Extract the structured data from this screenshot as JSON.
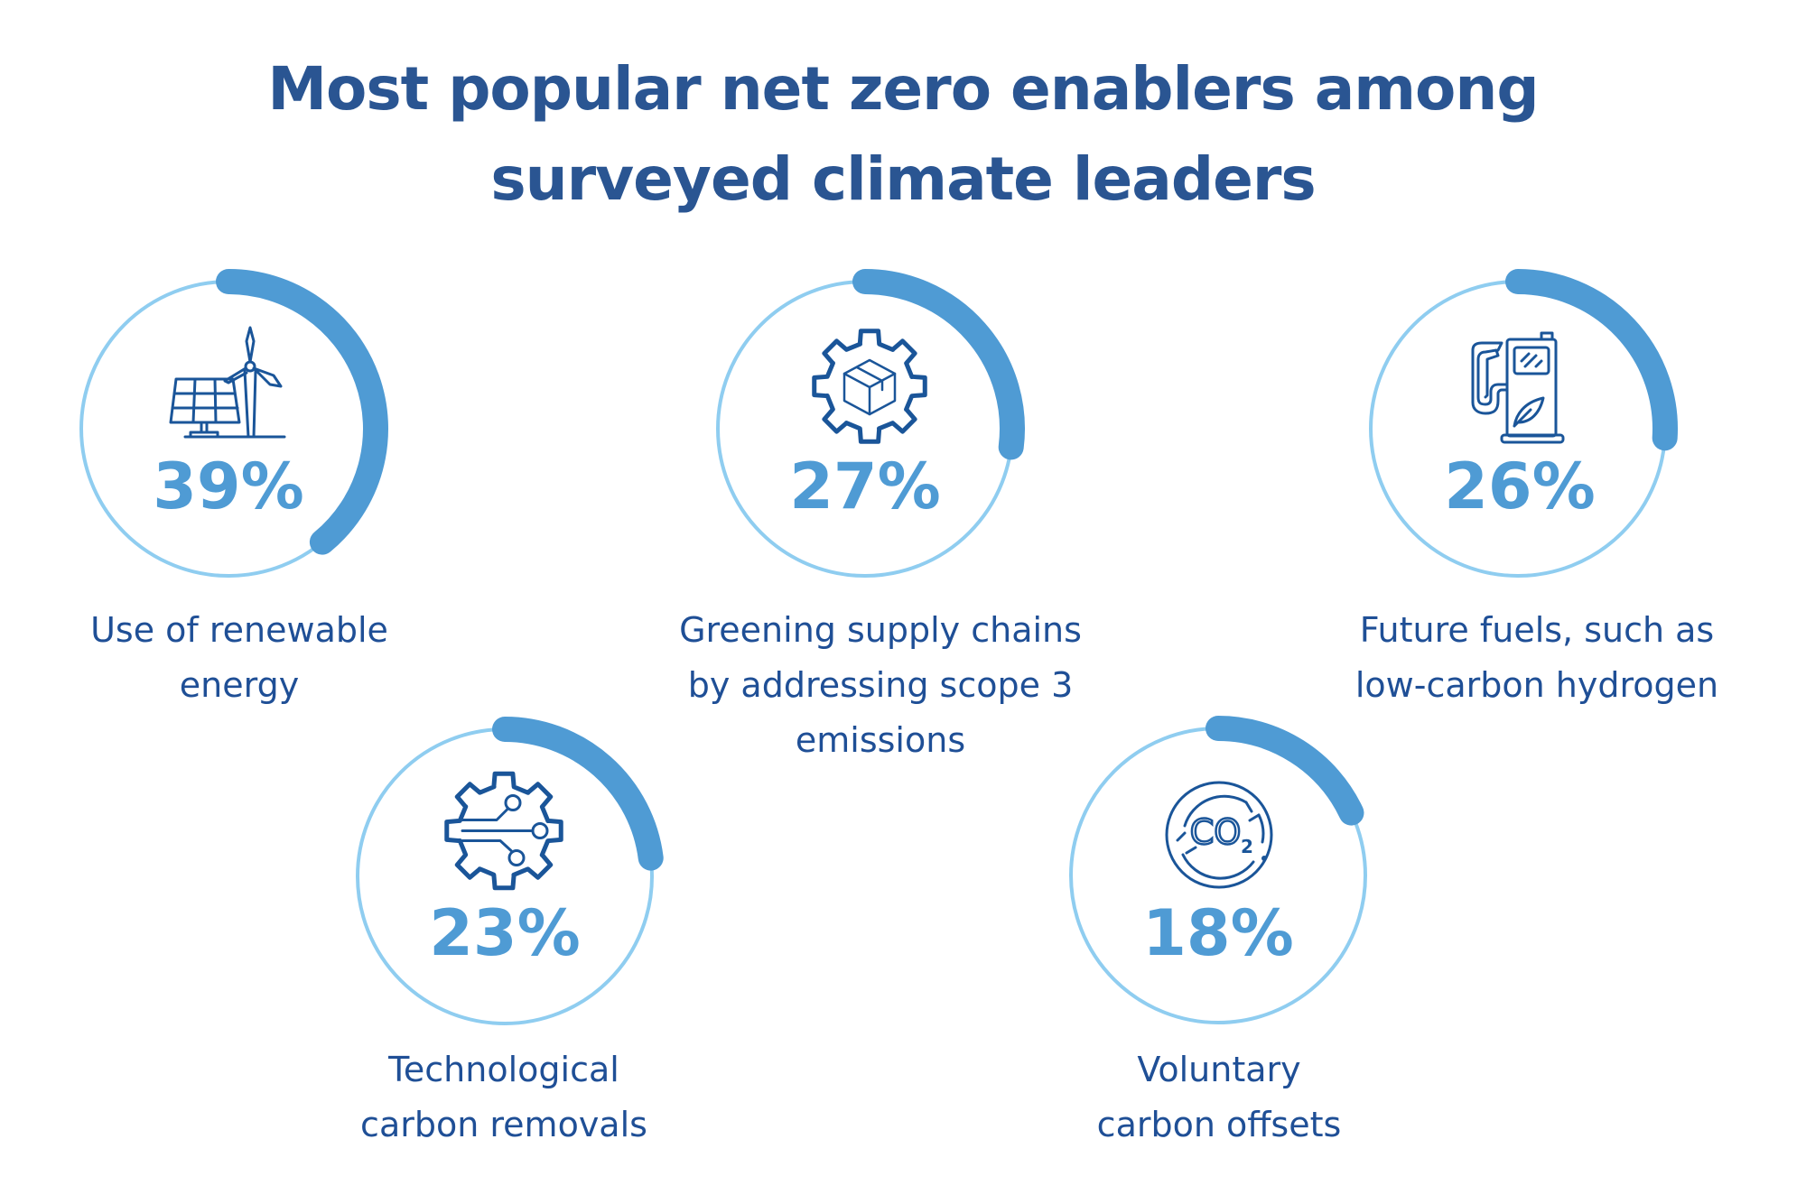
{
  "chart_data": {
    "type": "donut-progress",
    "title": "Most popular net zero enablers among surveyed climate leaders",
    "title_lines": [
      "Most popular net zero enablers among",
      "surveyed climate leaders"
    ],
    "unit": "%",
    "colors": {
      "title": "#2a5592",
      "progress_arc": "#4f9bd4",
      "track_ring": "#8fcdf0",
      "icon": "#1a5599",
      "label": "#1f4f96",
      "percent_text": "#4f9bd4"
    },
    "items": [
      {
        "label_lines": [
          "Use of renewable",
          "energy"
        ],
        "value": 39,
        "display": "39%",
        "icon": "solar-panel-wind-turbine-icon"
      },
      {
        "label_lines": [
          "Greening supply chains",
          "by addressing scope 3",
          "emissions"
        ],
        "value": 27,
        "display": "27%",
        "icon": "gear-box-icon"
      },
      {
        "label_lines": [
          "Future fuels, such as",
          "low-carbon hydrogen"
        ],
        "value": 26,
        "display": "26%",
        "icon": "fuel-pump-leaf-icon"
      },
      {
        "label_lines": [
          "Technological",
          "carbon removals"
        ],
        "value": 23,
        "display": "23%",
        "icon": "gear-circuit-icon"
      },
      {
        "label_lines": [
          "Voluntary",
          "carbon offsets"
        ],
        "value": 18,
        "display": "18%",
        "icon": "co2-offset-icon"
      }
    ]
  }
}
